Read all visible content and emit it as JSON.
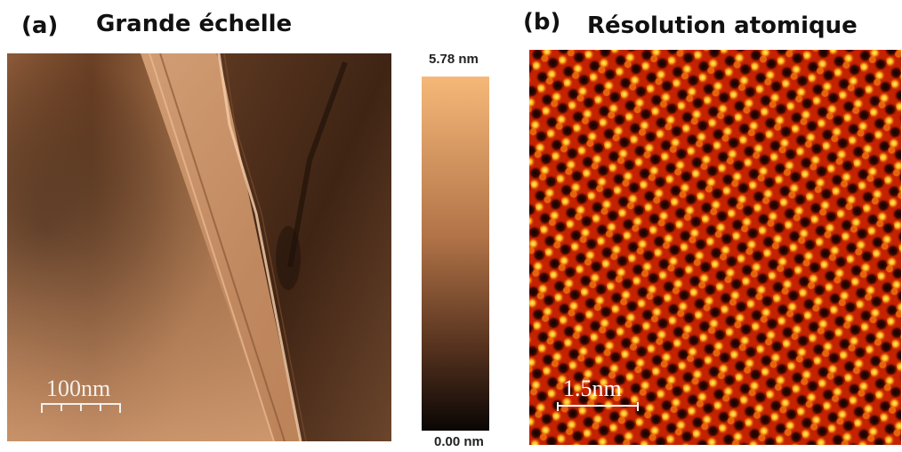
{
  "panel_a": {
    "letter": "(a)",
    "title": "Grande échelle",
    "scale_label": "100nm"
  },
  "panel_b": {
    "letter": "(b)",
    "title": "Résolution atomique",
    "scale_label": "1.5nm"
  },
  "colorbar": {
    "max_label": "5.78 nm",
    "min_label": "0.00 nm",
    "top_color": "#f6b878",
    "mid_color": "#b27448",
    "bottom_color": "#0a0604"
  },
  "colors": {
    "afm_light": "#c98f62",
    "afm_dark": "#3b2214",
    "atomic_background": "#b81a00",
    "atomic_highlight": "#ffe23a",
    "atomic_hole": "#1a0500"
  }
}
